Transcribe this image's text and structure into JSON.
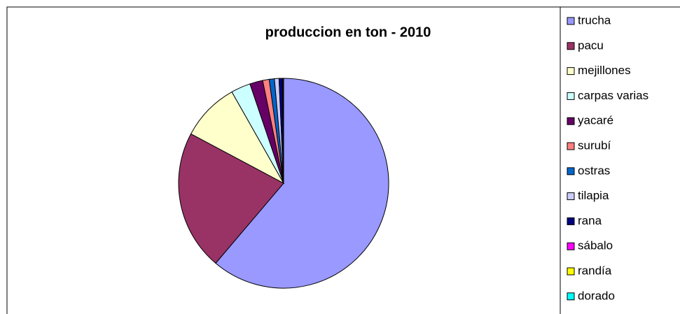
{
  "chart_data": {
    "type": "pie",
    "title": "produccion en ton - 2010",
    "categories": [
      "trucha",
      "pacu",
      "mejillones",
      "carpas varias",
      "yacaré",
      "surubí",
      "ostras",
      "tilapia",
      "rana",
      "sábalo",
      "randía",
      "dorado"
    ],
    "values": [
      61.2,
      21.6,
      9,
      3,
      2,
      1,
      0.8,
      0.7,
      0.5,
      0.1,
      0.05,
      0.05
    ],
    "colors": [
      "#9999ff",
      "#993366",
      "#ffffcc",
      "#ccffff",
      "#660066",
      "#ff8080",
      "#0066cc",
      "#ccccff",
      "#000080",
      "#ff00ff",
      "#ffff00",
      "#00ffff"
    ],
    "legend": "right"
  }
}
